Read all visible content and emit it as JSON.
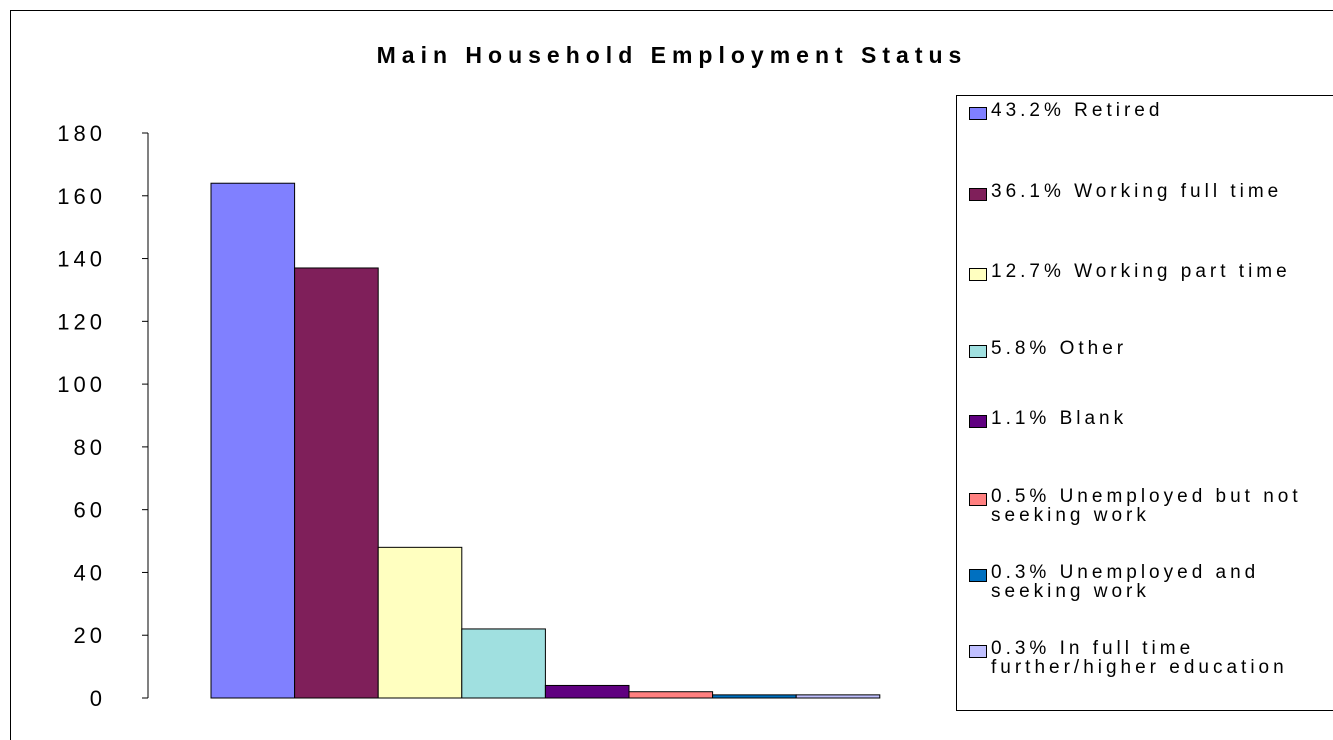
{
  "chart_data": {
    "type": "bar",
    "title": "Main Household Employment Status",
    "xlabel": "",
    "ylabel": "",
    "ylim": [
      0,
      180
    ],
    "yticks": [
      0,
      20,
      40,
      60,
      80,
      100,
      120,
      140,
      160,
      180
    ],
    "grid": false,
    "legend_position": "right",
    "series": [
      {
        "name": "43.2% Retired",
        "values": [
          164
        ],
        "color": "#8080ff"
      },
      {
        "name": "36.1% Working full time",
        "values": [
          137
        ],
        "color": "#7f1f5a"
      },
      {
        "name": "12.7% Working part time",
        "values": [
          48
        ],
        "color": "#ffffc0"
      },
      {
        "name": "5.8% Other",
        "values": [
          22
        ],
        "color": "#a0e0e0"
      },
      {
        "name": "1.1% Blank",
        "values": [
          4
        ],
        "color": "#600080"
      },
      {
        "name": "0.5% Unemployed but not seeking work",
        "values": [
          2
        ],
        "color": "#ff8080"
      },
      {
        "name": "0.3% Unemployed and seeking work",
        "values": [
          1
        ],
        "color": "#0070c0"
      },
      {
        "name": "0.3% In full time further/higher education",
        "values": [
          1
        ],
        "color": "#c0c0ff"
      }
    ]
  }
}
